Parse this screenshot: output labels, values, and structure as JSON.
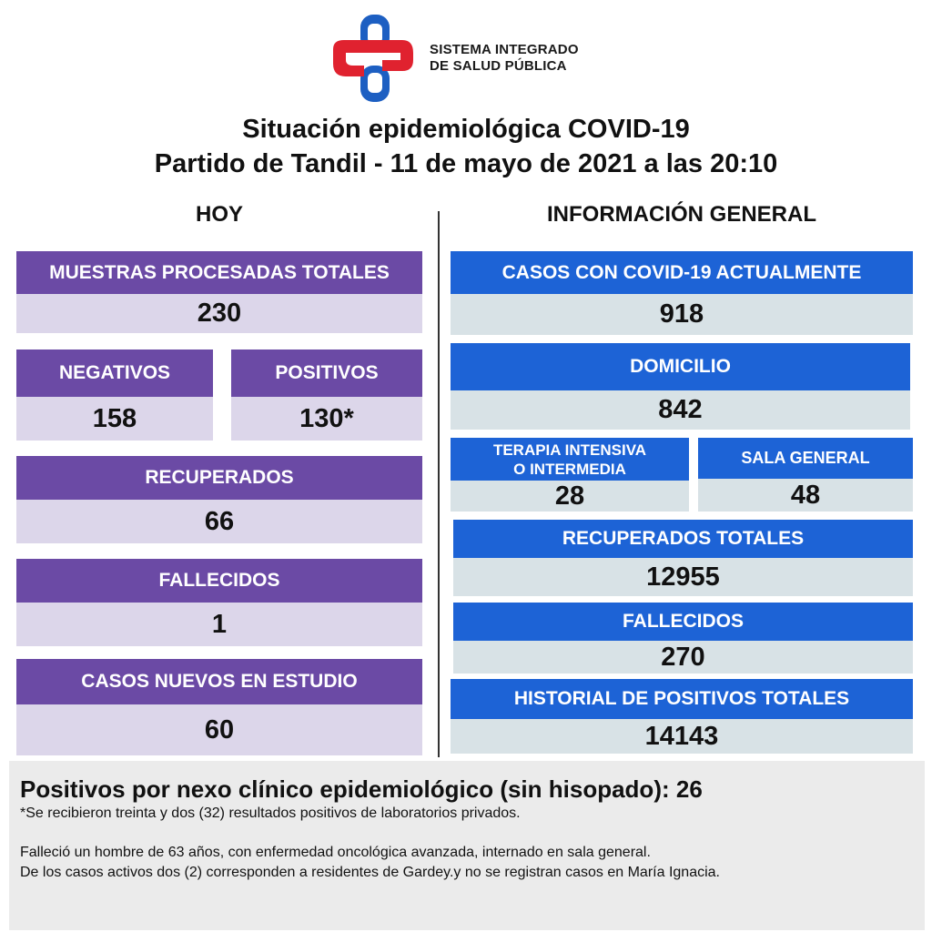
{
  "logo": {
    "line1": "SISTEMA INTEGRADO",
    "line2": "DE SALUD PÚBLICA"
  },
  "title": {
    "line1": "Situación epidemiológica COVID-19",
    "line2": "Partido de Tandil - 11 de mayo de 2021 a las 20:10"
  },
  "colors": {
    "purple_header": "#6b4aa5",
    "purple_value": "#dcd6ea",
    "blue_header": "#1d63d6",
    "blue_value": "#d8e2e6"
  },
  "hoy": {
    "heading": "HOY",
    "muestras": {
      "label": "MUESTRAS PROCESADAS TOTALES",
      "value": "230"
    },
    "negativos": {
      "label": "NEGATIVOS",
      "value": "158"
    },
    "positivos": {
      "label": "POSITIVOS",
      "value": "130*"
    },
    "recuperados": {
      "label": "RECUPERADOS",
      "value": "66"
    },
    "fallecidos": {
      "label": "FALLECIDOS",
      "value": "1"
    },
    "casos_nuevos": {
      "label": "CASOS NUEVOS EN ESTUDIO",
      "value": "60"
    }
  },
  "general": {
    "heading": "INFORMACIÓN GENERAL",
    "casos_actuales": {
      "label": "CASOS CON COVID-19 ACTUALMENTE",
      "value": "918"
    },
    "domicilio": {
      "label": "DOMICILIO",
      "value": "842"
    },
    "terapia": {
      "label_line1": "TERAPIA INTENSIVA",
      "label_line2": "O INTERMEDIA",
      "value": "28"
    },
    "sala_general": {
      "label": "SALA GENERAL",
      "value": "48"
    },
    "recuperados_totales": {
      "label": "RECUPERADOS TOTALES",
      "value": "12955"
    },
    "fallecidos": {
      "label": "FALLECIDOS",
      "value": "270"
    },
    "historial": {
      "label": "HISTORIAL DE POSITIVOS TOTALES",
      "value": "14143"
    }
  },
  "footer": {
    "main": "Positivos por nexo clínico epidemiológico (sin hisopado): 26",
    "note": "*Se recibieron treinta y dos (32) resultados positivos de laboratorios privados.",
    "text1": "Falleció un hombre de 63 años, con enfermedad oncológica avanzada, internado en sala general.",
    "text2": "De los casos activos dos (2) corresponden a residentes de Gardey.y no se registran casos en María Ignacia."
  }
}
